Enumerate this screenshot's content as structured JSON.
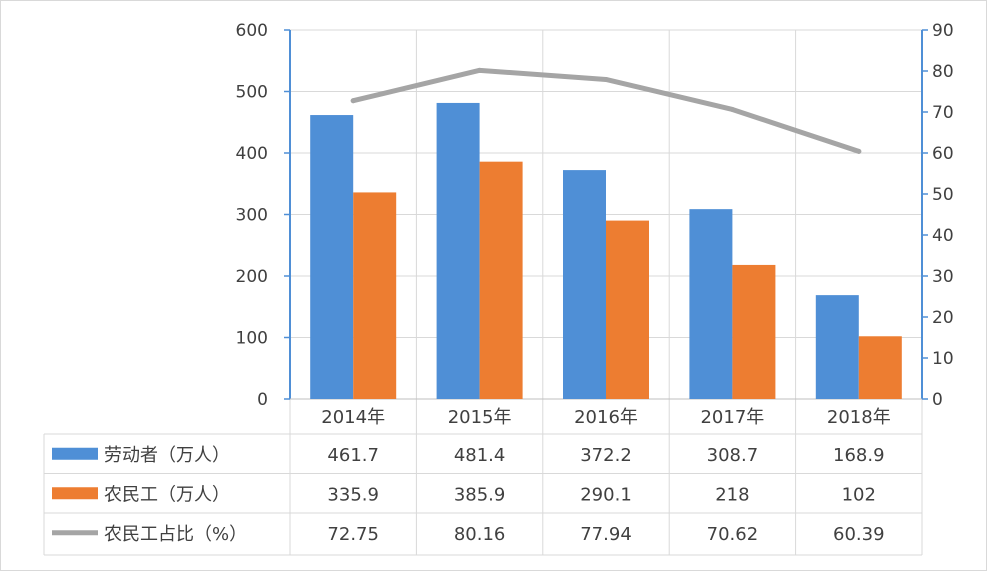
{
  "chart_data": {
    "type": "bar",
    "categories": [
      "2014年",
      "2015年",
      "2016年",
      "2017年",
      "2018年"
    ],
    "series": [
      {
        "name": "劳动者（万人）",
        "kind": "bar",
        "axis": "left",
        "color": "#4F8FD6",
        "values": [
          461.7,
          481.4,
          372.2,
          308.7,
          168.9
        ],
        "labels": [
          "461.7",
          "481.4",
          "372.2",
          "308.7",
          "168.9"
        ]
      },
      {
        "name": "农民工（万人）",
        "kind": "bar",
        "axis": "left",
        "color": "#ED7D31",
        "values": [
          335.9,
          385.9,
          290.1,
          218,
          102
        ],
        "labels": [
          "335.9",
          "385.9",
          "290.1",
          "218",
          "102"
        ]
      },
      {
        "name": "农民工占比（%）",
        "kind": "line",
        "axis": "right",
        "color": "#A5A5A5",
        "values": [
          72.75,
          80.16,
          77.94,
          70.62,
          60.39
        ],
        "labels": [
          "72.75",
          "80.16",
          "77.94",
          "70.62",
          "60.39"
        ]
      }
    ],
    "ylim_left": [
      0,
      600
    ],
    "yticks_left": [
      "0",
      "100",
      "200",
      "300",
      "400",
      "500",
      "600"
    ],
    "ylim_right": [
      0,
      90
    ],
    "yticks_right": [
      "0",
      "10",
      "20",
      "30",
      "40",
      "50",
      "60",
      "70",
      "80",
      "90"
    ],
    "grid": true,
    "legend": "data-table"
  }
}
